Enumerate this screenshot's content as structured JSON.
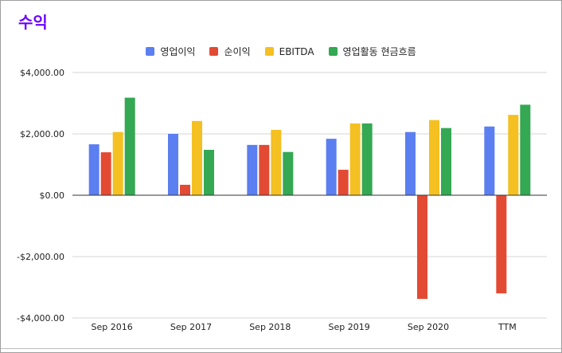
{
  "chart_data": {
    "type": "bar",
    "title": "수익",
    "categories": [
      "Sep 2016",
      "Sep 2017",
      "Sep 2018",
      "Sep 2019",
      "Sep 2020",
      "TTM"
    ],
    "series": [
      {
        "name": "영업이익",
        "color": "#5b7ff0",
        "values": [
          1660,
          2000,
          1640,
          1840,
          2060,
          2240
        ]
      },
      {
        "name": "순이익",
        "color": "#e34a33",
        "values": [
          1400,
          340,
          1640,
          830,
          -3380,
          -3200
        ]
      },
      {
        "name": "EBITDA",
        "color": "#f4c022",
        "values": [
          2060,
          2420,
          2130,
          2340,
          2450,
          2620
        ]
      },
      {
        "name": "영업활동 현금흐름",
        "color": "#34a853",
        "values": [
          3180,
          1480,
          1410,
          2340,
          2190,
          2950
        ]
      }
    ],
    "yticks": [
      "$4,000.00",
      "$2,000.00",
      "$0.00",
      "-$2,000.00",
      "-$4,000.00"
    ],
    "ytick_values": [
      4000,
      2000,
      0,
      -2000,
      -4000
    ],
    "ylim": [
      -4000,
      4000
    ],
    "grid": true,
    "legend_position": "top"
  }
}
